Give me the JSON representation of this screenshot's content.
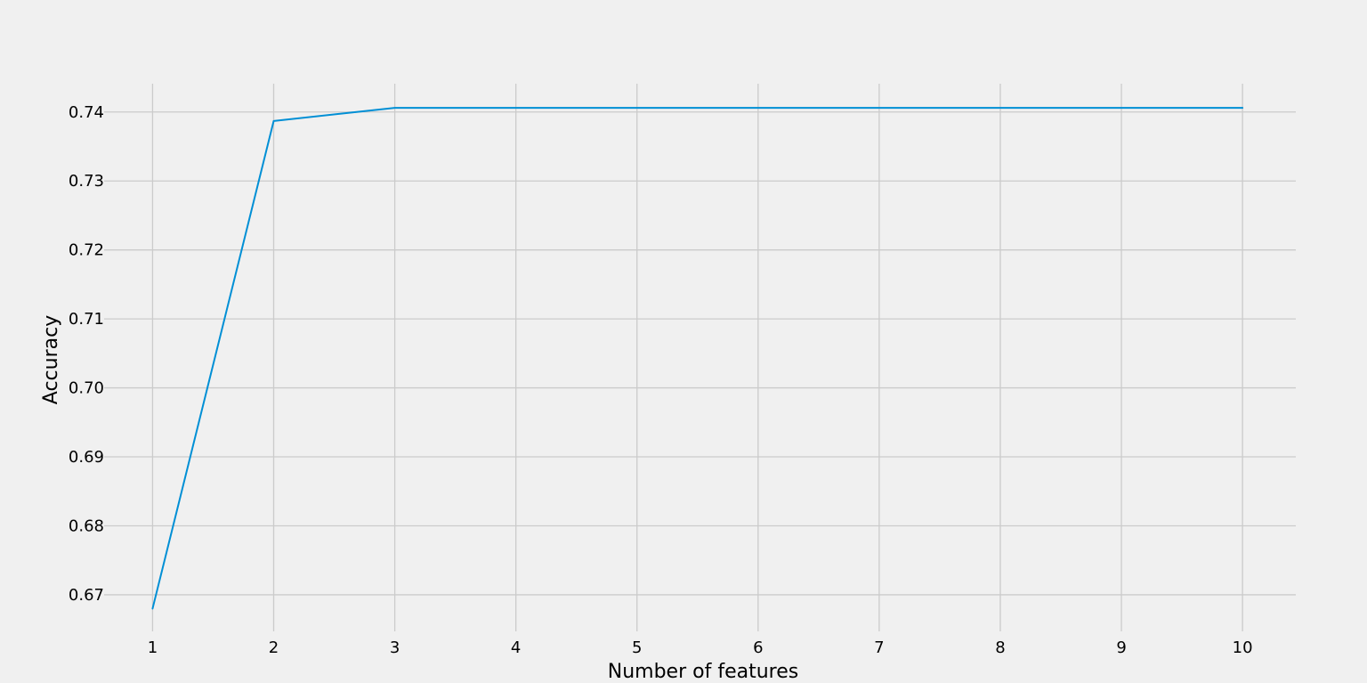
{
  "colors": {
    "background": "#f0f0f0",
    "grid": "#cbcbcb",
    "series": "#008fd5",
    "text": "#000000"
  },
  "chart_data": {
    "type": "line",
    "title": "",
    "xlabel": "Number of features",
    "ylabel": "Accuracy",
    "x": [
      1,
      2,
      3,
      4,
      5,
      6,
      7,
      8,
      9,
      10
    ],
    "x_ticks": [
      "1",
      "2",
      "3",
      "4",
      "5",
      "6",
      "7",
      "8",
      "9",
      "10"
    ],
    "y_ticks": [
      "0.67",
      "0.68",
      "0.69",
      "0.70",
      "0.71",
      "0.72",
      "0.73",
      "0.74"
    ],
    "xlim": [
      0.6,
      10.44
    ],
    "ylim": [
      0.6647,
      0.7441
    ],
    "grid": true,
    "legend": "none",
    "series": [
      {
        "values": [
          0.668,
          0.7387,
          0.7406,
          0.7406,
          0.7406,
          0.7406,
          0.7406,
          0.7406,
          0.7406,
          0.7406
        ]
      }
    ]
  }
}
